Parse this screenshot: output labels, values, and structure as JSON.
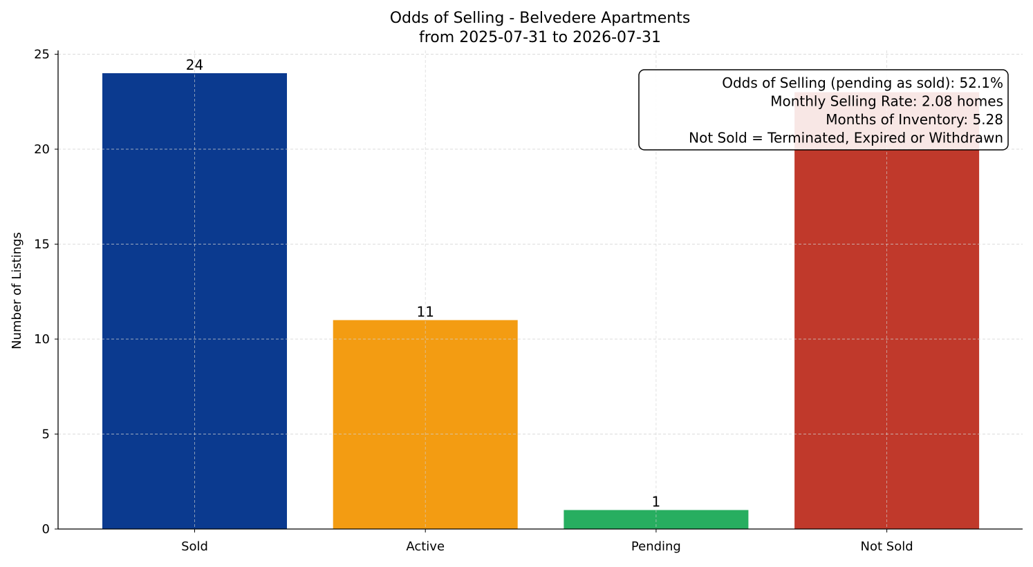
{
  "chart_data": {
    "type": "bar",
    "title": "Odds of Selling - Belvedere Apartments",
    "subtitle": "from 2025-07-31 to 2026-07-31",
    "xlabel": "",
    "ylabel": "Number of Listings",
    "categories": [
      "Sold",
      "Active",
      "Pending",
      "Not Sold"
    ],
    "values": [
      24,
      11,
      1,
      23
    ],
    "data_labels": [
      "24",
      "11",
      "1",
      ""
    ],
    "colors": [
      "#0b3a8f",
      "#f39c12",
      "#27ae60",
      "#c0392b"
    ],
    "ylim": [
      0,
      25
    ],
    "yticks": [
      0,
      5,
      10,
      15,
      20,
      25
    ],
    "grid": true,
    "info_box": {
      "placement": "top-right",
      "lines": [
        "Odds of Selling (pending as sold): 52.1%",
        "Monthly Selling Rate: 2.08 homes",
        "Months of Inventory: 5.28",
        "Not Sold = Terminated, Expired or Withdrawn"
      ]
    }
  }
}
